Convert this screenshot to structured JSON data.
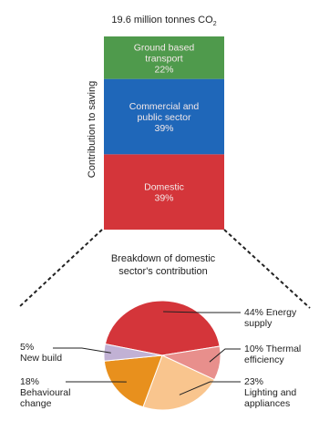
{
  "header_fragment": "",
  "chart_data": [
    {
      "type": "stacked_bar",
      "title": "19.6 million tonnes CO",
      "title_subscript": "2",
      "ylabel": "Contribution to saving",
      "segments": [
        {
          "label_lines": [
            "Domestic",
            "39%"
          ],
          "value": 39,
          "color": "#d4353a"
        },
        {
          "label_lines": [
            "Commercial and",
            "public sector",
            "39%"
          ],
          "value": 39,
          "color": "#1f67b9"
        },
        {
          "label_lines": [
            "Ground based",
            "transport",
            "22%"
          ],
          "value": 22,
          "color": "#4f9a4c"
        }
      ]
    },
    {
      "type": "pie",
      "title_lines": [
        "Breakdown of domestic",
        "sector's contribution"
      ],
      "slices": [
        {
          "label_lines": [
            "44% Energy",
            "supply"
          ],
          "value": 44,
          "color": "#d4353a"
        },
        {
          "label_lines": [
            "10% Thermal",
            "efficiency"
          ],
          "value": 10,
          "color": "#e88f8c"
        },
        {
          "label_lines": [
            "23%",
            "Lighting and",
            "appliances"
          ],
          "value": 23,
          "color": "#f9c58e"
        },
        {
          "label_lines": [
            "18%",
            "Behavioural",
            "change"
          ],
          "value": 18,
          "color": "#e8901d"
        },
        {
          "label_lines": [
            "5%",
            "New build"
          ],
          "value": 5,
          "color": "#c1b1d4"
        }
      ]
    }
  ]
}
